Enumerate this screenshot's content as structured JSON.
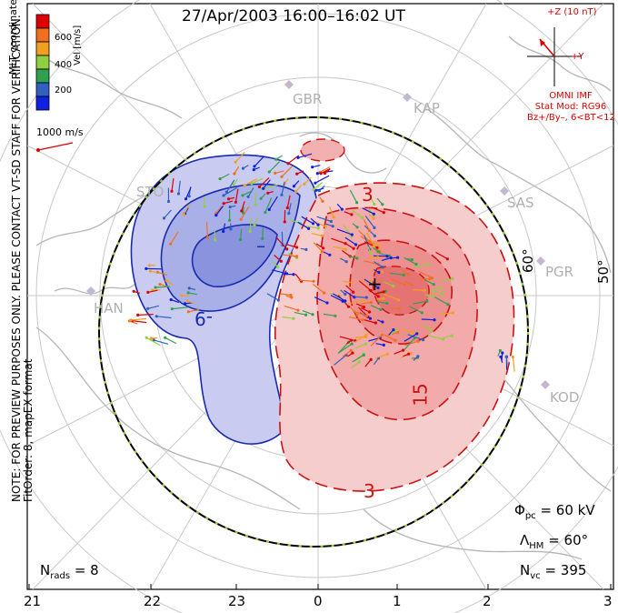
{
  "title": "27/Apr/2003 16:00–16:02 UT",
  "imf": {
    "z_label": "+Z (10 nT)",
    "y_label": "+Y",
    "source": "OMNI IMF",
    "model": "Stat Mod: RG96",
    "condition": "Bz+/By–, 6<BT<12",
    "color": "#dd0000"
  },
  "coordinates_label": "MLT coordinates",
  "velocity_scale": {
    "title": "Vel [m/s]",
    "ticks": [
      "600",
      "400",
      "200"
    ],
    "colors": [
      "#dd0000",
      "#f07020",
      "#f0a020",
      "#90d040",
      "#30a050",
      "#3060c0",
      "#1020e0"
    ]
  },
  "vector_scale_label": "1000 m/s",
  "note_lines": [
    "NOTE: FOR PREVIEW PURPOSES ONLY. PLEASE CONTACT VT-SD STAFF FOR VERIFICATION.",
    "FitOrder: 8, mapEX format"
  ],
  "stations": [
    "GBR",
    "KAP",
    "SAS",
    "PGR",
    "KOD",
    "HAN",
    "STO"
  ],
  "latitude_labels": [
    "60°",
    "50°"
  ],
  "contour_labels": {
    "neg_minus": "–",
    "neg_9": "-9",
    "pos_3_top": "3",
    "pos_15": "15",
    "pos_3_bottom": "3",
    "pos_plus": "+"
  },
  "parameters": {
    "phi_symbol": "Φ",
    "phi_sub": "pc",
    "phi_value": "= 60 kV",
    "lambda_symbol": "Λ",
    "lambda_sub": "HM",
    "lambda_value": "= 60°",
    "nvc_symbol": "N",
    "nvc_sub": "vc",
    "nvc_value": "= 395",
    "nrads_symbol": "N",
    "nrads_sub": "rads",
    "nrads_value": "= 8"
  },
  "mlt_ticks": [
    "21",
    "22",
    "23",
    "0",
    "1",
    "2",
    "3"
  ],
  "colors": {
    "negative_fill": "#b8bfee",
    "positive_fill": "#f6c4c4",
    "negative_line": "#1a2ab0",
    "positive_line": "#cc1111",
    "coastline": "#b5b5b5",
    "grid": "#c8c8c8"
  }
}
